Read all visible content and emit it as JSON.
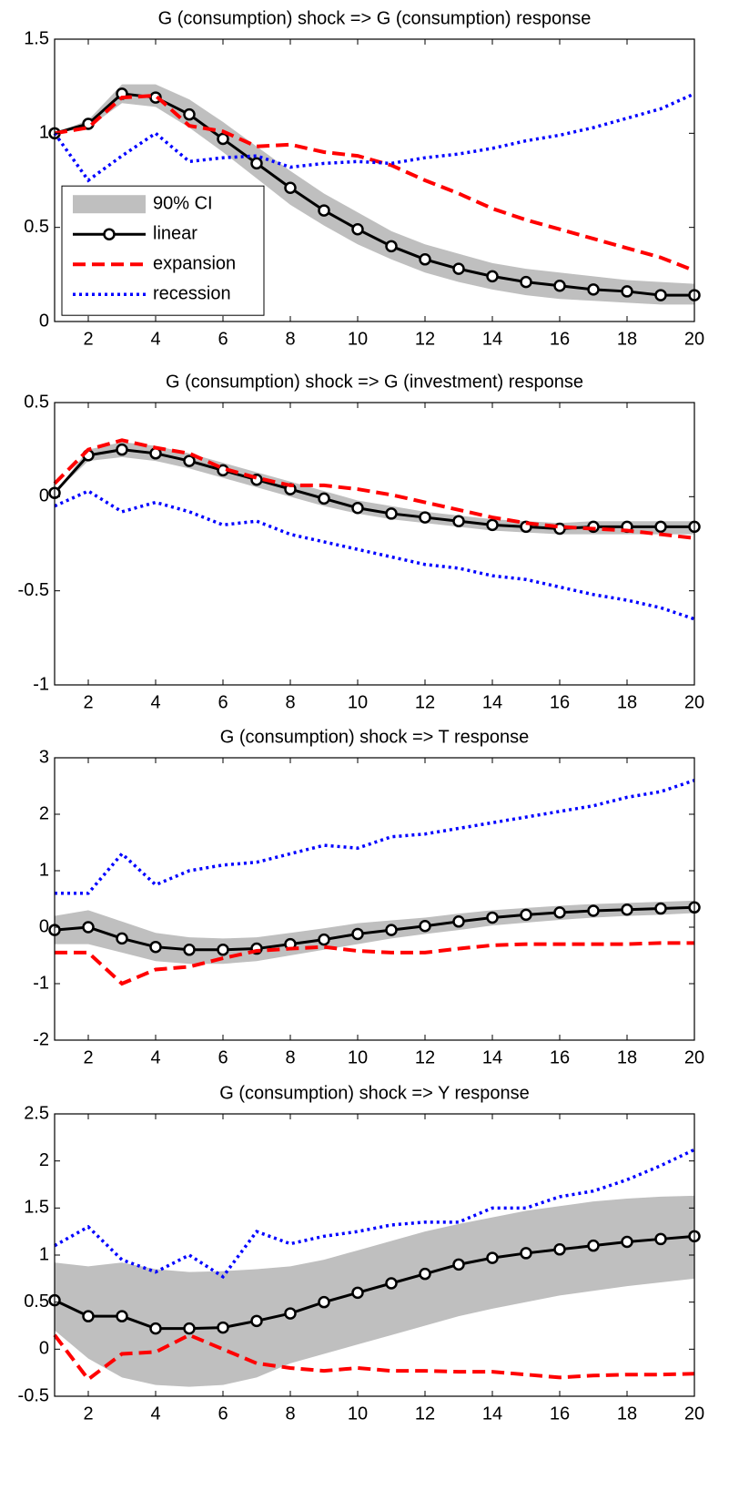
{
  "chart_data": [
    {
      "type": "line",
      "title": "G (consumption) shock => G (consumption) response",
      "x": [
        1,
        2,
        3,
        4,
        5,
        6,
        7,
        8,
        9,
        10,
        11,
        12,
        13,
        14,
        15,
        16,
        17,
        18,
        19,
        20
      ],
      "xlim": [
        1,
        20
      ],
      "xticks": [
        2,
        4,
        6,
        8,
        10,
        12,
        14,
        16,
        18,
        20
      ],
      "ylim": [
        0,
        1.5
      ],
      "yticks": [
        0,
        0.5,
        1,
        1.5
      ],
      "legend": "center left",
      "series": [
        {
          "name": "90% CI",
          "type": "band",
          "color": "#bfbfbf",
          "lower": [
            1.0,
            1.03,
            1.16,
            1.14,
            1.03,
            0.9,
            0.76,
            0.62,
            0.51,
            0.41,
            0.33,
            0.26,
            0.21,
            0.17,
            0.14,
            0.12,
            0.11,
            0.1,
            0.09,
            0.09
          ],
          "upper": [
            1.0,
            1.07,
            1.26,
            1.26,
            1.18,
            1.06,
            0.93,
            0.8,
            0.68,
            0.58,
            0.48,
            0.41,
            0.36,
            0.31,
            0.28,
            0.26,
            0.24,
            0.22,
            0.21,
            0.2
          ]
        },
        {
          "name": "linear",
          "color": "#000000",
          "linestyle": "solid",
          "marker": "o",
          "values": [
            1.0,
            1.05,
            1.21,
            1.19,
            1.1,
            0.97,
            0.84,
            0.71,
            0.59,
            0.49,
            0.4,
            0.33,
            0.28,
            0.24,
            0.21,
            0.19,
            0.17,
            0.16,
            0.14,
            0.14
          ]
        },
        {
          "name": "expansion",
          "color": "#ff0000",
          "linestyle": "dashed",
          "values": [
            1.0,
            1.03,
            1.19,
            1.2,
            1.04,
            1.01,
            0.93,
            0.94,
            0.9,
            0.88,
            0.83,
            0.75,
            0.68,
            0.6,
            0.54,
            0.49,
            0.44,
            0.39,
            0.34,
            0.27
          ]
        },
        {
          "name": "recession",
          "color": "#0000ff",
          "linestyle": "dotted",
          "values": [
            1.0,
            0.75,
            0.88,
            1.0,
            0.85,
            0.87,
            0.88,
            0.82,
            0.84,
            0.85,
            0.84,
            0.87,
            0.89,
            0.92,
            0.96,
            0.99,
            1.03,
            1.08,
            1.13,
            1.21
          ]
        }
      ]
    },
    {
      "type": "line",
      "title": "G (consumption) shock => G (investment) response",
      "x": [
        1,
        2,
        3,
        4,
        5,
        6,
        7,
        8,
        9,
        10,
        11,
        12,
        13,
        14,
        15,
        16,
        17,
        18,
        19,
        20
      ],
      "xlim": [
        1,
        20
      ],
      "xticks": [
        2,
        4,
        6,
        8,
        10,
        12,
        14,
        16,
        18,
        20
      ],
      "ylim": [
        -1,
        0.5
      ],
      "yticks": [
        -1,
        -0.5,
        0,
        0.5
      ],
      "series": [
        {
          "type": "band",
          "color": "#bfbfbf",
          "lower": [
            0.02,
            0.19,
            0.21,
            0.19,
            0.15,
            0.1,
            0.05,
            0.0,
            -0.05,
            -0.09,
            -0.12,
            -0.14,
            -0.16,
            -0.18,
            -0.19,
            -0.2,
            -0.2,
            -0.2,
            -0.2,
            -0.2
          ],
          "upper": [
            0.02,
            0.25,
            0.29,
            0.27,
            0.23,
            0.18,
            0.13,
            0.08,
            0.03,
            -0.02,
            -0.05,
            -0.08,
            -0.1,
            -0.12,
            -0.13,
            -0.14,
            -0.13,
            -0.13,
            -0.13,
            -0.13
          ]
        },
        {
          "color": "#000000",
          "linestyle": "solid",
          "marker": "o",
          "values": [
            0.02,
            0.22,
            0.25,
            0.23,
            0.19,
            0.14,
            0.09,
            0.04,
            -0.01,
            -0.06,
            -0.09,
            -0.11,
            -0.13,
            -0.15,
            -0.16,
            -0.17,
            -0.16,
            -0.16,
            -0.16,
            -0.16
          ]
        },
        {
          "color": "#ff0000",
          "linestyle": "dashed",
          "values": [
            0.07,
            0.25,
            0.3,
            0.26,
            0.23,
            0.15,
            0.1,
            0.06,
            0.06,
            0.04,
            0.01,
            -0.03,
            -0.07,
            -0.11,
            -0.14,
            -0.16,
            -0.17,
            -0.18,
            -0.2,
            -0.22
          ]
        },
        {
          "color": "#0000ff",
          "linestyle": "dotted",
          "values": [
            -0.05,
            0.03,
            -0.08,
            -0.03,
            -0.08,
            -0.15,
            -0.13,
            -0.2,
            -0.24,
            -0.28,
            -0.32,
            -0.36,
            -0.38,
            -0.42,
            -0.44,
            -0.48,
            -0.52,
            -0.55,
            -0.59,
            -0.65
          ]
        }
      ]
    },
    {
      "type": "line",
      "title": "G (consumption) shock => T response",
      "x": [
        1,
        2,
        3,
        4,
        5,
        6,
        7,
        8,
        9,
        10,
        11,
        12,
        13,
        14,
        15,
        16,
        17,
        18,
        19,
        20
      ],
      "xlim": [
        1,
        20
      ],
      "xticks": [
        2,
        4,
        6,
        8,
        10,
        12,
        14,
        16,
        18,
        20
      ],
      "ylim": [
        -2,
        3
      ],
      "yticks": [
        -2,
        -1,
        0,
        1,
        2,
        3
      ],
      "series": [
        {
          "type": "band",
          "color": "#bfbfbf",
          "lower": [
            -0.3,
            -0.3,
            -0.45,
            -0.6,
            -0.65,
            -0.65,
            -0.6,
            -0.5,
            -0.4,
            -0.3,
            -0.2,
            -0.12,
            -0.05,
            0.03,
            0.08,
            0.13,
            0.17,
            0.2,
            0.22,
            0.25
          ],
          "upper": [
            0.2,
            0.3,
            0.1,
            -0.1,
            -0.18,
            -0.2,
            -0.18,
            -0.1,
            -0.02,
            0.07,
            0.12,
            0.17,
            0.24,
            0.3,
            0.34,
            0.38,
            0.41,
            0.43,
            0.45,
            0.47
          ]
        },
        {
          "color": "#000000",
          "linestyle": "solid",
          "marker": "o",
          "values": [
            -0.05,
            0.0,
            -0.2,
            -0.35,
            -0.4,
            -0.4,
            -0.38,
            -0.3,
            -0.22,
            -0.12,
            -0.05,
            0.02,
            0.1,
            0.17,
            0.22,
            0.26,
            0.29,
            0.31,
            0.33,
            0.35
          ]
        },
        {
          "color": "#ff0000",
          "linestyle": "dashed",
          "values": [
            -0.45,
            -0.45,
            -1.0,
            -0.75,
            -0.7,
            -0.55,
            -0.42,
            -0.38,
            -0.35,
            -0.42,
            -0.45,
            -0.45,
            -0.38,
            -0.32,
            -0.3,
            -0.3,
            -0.3,
            -0.3,
            -0.28,
            -0.28
          ]
        },
        {
          "color": "#0000ff",
          "linestyle": "dotted",
          "values": [
            0.6,
            0.6,
            1.3,
            0.75,
            1.0,
            1.1,
            1.15,
            1.3,
            1.45,
            1.4,
            1.6,
            1.65,
            1.75,
            1.85,
            1.95,
            2.05,
            2.15,
            2.3,
            2.4,
            2.6
          ]
        }
      ]
    },
    {
      "type": "line",
      "title": "G (consumption) shock => Y response",
      "x": [
        1,
        2,
        3,
        4,
        5,
        6,
        7,
        8,
        9,
        10,
        11,
        12,
        13,
        14,
        15,
        16,
        17,
        18,
        19,
        20
      ],
      "xlim": [
        1,
        20
      ],
      "xticks": [
        2,
        4,
        6,
        8,
        10,
        12,
        14,
        16,
        18,
        20
      ],
      "ylim": [
        -0.5,
        2.5
      ],
      "yticks": [
        -0.5,
        0,
        0.5,
        1,
        1.5,
        2,
        2.5
      ],
      "series": [
        {
          "type": "band",
          "color": "#bfbfbf",
          "lower": [
            0.2,
            -0.1,
            -0.3,
            -0.38,
            -0.4,
            -0.38,
            -0.3,
            -0.15,
            -0.05,
            0.05,
            0.15,
            0.25,
            0.35,
            0.43,
            0.5,
            0.57,
            0.62,
            0.67,
            0.71,
            0.75
          ],
          "upper": [
            0.92,
            0.88,
            0.92,
            0.85,
            0.82,
            0.83,
            0.85,
            0.88,
            0.95,
            1.05,
            1.15,
            1.25,
            1.33,
            1.4,
            1.47,
            1.52,
            1.57,
            1.6,
            1.62,
            1.63
          ]
        },
        {
          "color": "#000000",
          "linestyle": "solid",
          "marker": "o",
          "values": [
            0.52,
            0.35,
            0.35,
            0.22,
            0.22,
            0.23,
            0.3,
            0.38,
            0.5,
            0.6,
            0.7,
            0.8,
            0.9,
            0.97,
            1.02,
            1.06,
            1.1,
            1.14,
            1.17,
            1.2
          ]
        },
        {
          "color": "#ff0000",
          "linestyle": "dashed",
          "values": [
            0.15,
            -0.32,
            -0.05,
            -0.03,
            0.15,
            0.0,
            -0.15,
            -0.2,
            -0.23,
            -0.2,
            -0.23,
            -0.23,
            -0.24,
            -0.24,
            -0.27,
            -0.3,
            -0.28,
            -0.27,
            -0.27,
            -0.26
          ]
        },
        {
          "color": "#0000ff",
          "linestyle": "dotted",
          "values": [
            1.1,
            1.3,
            0.95,
            0.82,
            1.0,
            0.77,
            1.25,
            1.12,
            1.2,
            1.25,
            1.32,
            1.35,
            1.35,
            1.5,
            1.5,
            1.62,
            1.68,
            1.8,
            1.95,
            2.12
          ]
        }
      ]
    }
  ]
}
